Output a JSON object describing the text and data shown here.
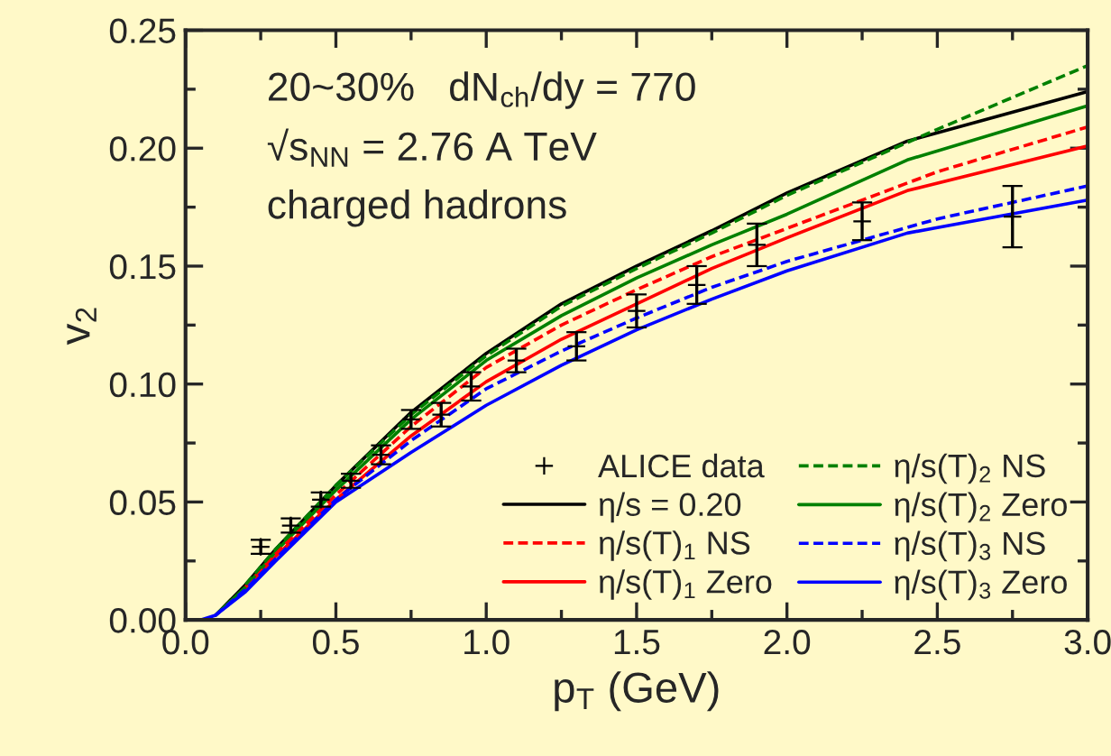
{
  "chart_data": {
    "type": "line",
    "xlabel": "p$_{T}$ (GeV)",
    "ylabel": "v$_{2}$",
    "annotations": [
      "20~30%   dN$_{ch}$/dy = 770",
      "√s$_{NN}$ = 2.76 A TeV",
      "charged hadrons"
    ],
    "xlim": [
      0,
      3
    ],
    "ylim": [
      0,
      0.25
    ],
    "xticks": [
      {
        "value": 0,
        "label": "0.0"
      },
      {
        "value": 0.5,
        "label": "0.5"
      },
      {
        "value": 1,
        "label": "1.0"
      },
      {
        "value": 1.5,
        "label": "1.5"
      },
      {
        "value": 2,
        "label": "2.0"
      },
      {
        "value": 2.5,
        "label": "2.5"
      },
      {
        "value": 3,
        "label": "3.0"
      }
    ],
    "yticks": [
      {
        "value": 0,
        "label": "0.00"
      },
      {
        "value": 0.05,
        "label": "0.05"
      },
      {
        "value": 0.1,
        "label": "0.10"
      },
      {
        "value": 0.15,
        "label": "0.15"
      },
      {
        "value": 0.2,
        "label": "0.20"
      },
      {
        "value": 0.25,
        "label": "0.25"
      }
    ],
    "grid": false,
    "legend": "bottom right",
    "series": [
      {
        "name": "ALICE data",
        "type": "scatter",
        "marker": "cross",
        "color": "#000000",
        "x": [
          0.25,
          0.35,
          0.45,
          0.55,
          0.65,
          0.75,
          0.85,
          0.95,
          1.1,
          1.3,
          1.5,
          1.7,
          1.9,
          2.25,
          2.75
        ],
        "values": [
          0.031,
          0.04,
          0.051,
          0.059,
          0.07,
          0.085,
          0.087,
          0.099,
          0.11,
          0.116,
          0.131,
          0.142,
          0.159,
          0.169,
          0.171
        ],
        "errors": [
          0.003,
          0.003,
          0.003,
          0.003,
          0.004,
          0.004,
          0.005,
          0.006,
          0.005,
          0.006,
          0.007,
          0.008,
          0.009,
          0.008,
          0.013
        ]
      },
      {
        "name": "η/s = 0.20",
        "color": "#000000",
        "line_style": "solid",
        "x": [
          0.1,
          0.2,
          0.3,
          0.5,
          0.75,
          1.0,
          1.25,
          1.5,
          1.75,
          2.0,
          2.4,
          3.0
        ],
        "values": [
          0.002,
          0.015,
          0.03,
          0.057,
          0.088,
          0.113,
          0.134,
          0.15,
          0.165,
          0.181,
          0.203,
          0.224
        ]
      },
      {
        "name": "η/s(T)$_{1}$ NS",
        "color": "#ff0000",
        "line_style": "dashed",
        "x": [
          0.2,
          0.3,
          0.5,
          0.75,
          1.0,
          1.25,
          1.5,
          1.75,
          2.0,
          2.5,
          3.0
        ],
        "values": [
          0.014,
          0.028,
          0.053,
          0.082,
          0.107,
          0.125,
          0.14,
          0.154,
          0.166,
          0.19,
          0.209
        ]
      },
      {
        "name": "η/s(T)$_{1}$ Zero",
        "color": "#ff0000",
        "line_style": "solid",
        "x": [
          0.2,
          0.3,
          0.5,
          0.75,
          1.0,
          1.25,
          1.5,
          1.75,
          2.0,
          2.4,
          3.0
        ],
        "values": [
          0.013,
          0.027,
          0.051,
          0.078,
          0.101,
          0.119,
          0.134,
          0.149,
          0.162,
          0.182,
          0.201
        ]
      },
      {
        "name": "η/s(T)$_{2}$ NS",
        "color": "#008000",
        "line_style": "dashed",
        "x": [
          0.2,
          0.3,
          0.5,
          0.75,
          1.0,
          1.25,
          1.5,
          1.75,
          2.0,
          2.5,
          3.0
        ],
        "values": [
          0.015,
          0.03,
          0.057,
          0.087,
          0.112,
          0.133,
          0.149,
          0.164,
          0.18,
          0.208,
          0.235
        ]
      },
      {
        "name": "η/s(T)$_{2}$ Zero",
        "color": "#008000",
        "line_style": "solid",
        "x": [
          0.1,
          0.2,
          0.3,
          0.5,
          0.75,
          1.0,
          1.25,
          1.5,
          1.75,
          2.0,
          2.4,
          3.0
        ],
        "values": [
          0.002,
          0.014,
          0.029,
          0.055,
          0.085,
          0.11,
          0.129,
          0.145,
          0.159,
          0.172,
          0.195,
          0.218
        ]
      },
      {
        "name": "η/s(T)$_{3}$ NS",
        "color": "#0000ff",
        "line_style": "dashed",
        "x": [
          0.1,
          0.2,
          0.3,
          0.5,
          0.75,
          1.0,
          1.25,
          1.5,
          1.75,
          2.0,
          2.5,
          3.0
        ],
        "values": [
          0.002,
          0.013,
          0.026,
          0.051,
          0.076,
          0.098,
          0.114,
          0.128,
          0.141,
          0.152,
          0.17,
          0.184
        ]
      },
      {
        "name": "η/s(T)$_{3}$ Zero",
        "color": "#0000ff",
        "line_style": "solid",
        "x": [
          0.05,
          0.1,
          0.2,
          0.3,
          0.5,
          0.75,
          1.0,
          1.25,
          1.5,
          1.75,
          2.0,
          2.4,
          3.0
        ],
        "values": [
          0,
          0.002,
          0.012,
          0.025,
          0.05,
          0.071,
          0.091,
          0.108,
          0.123,
          0.136,
          0.148,
          0.164,
          0.178
        ]
      }
    ]
  }
}
